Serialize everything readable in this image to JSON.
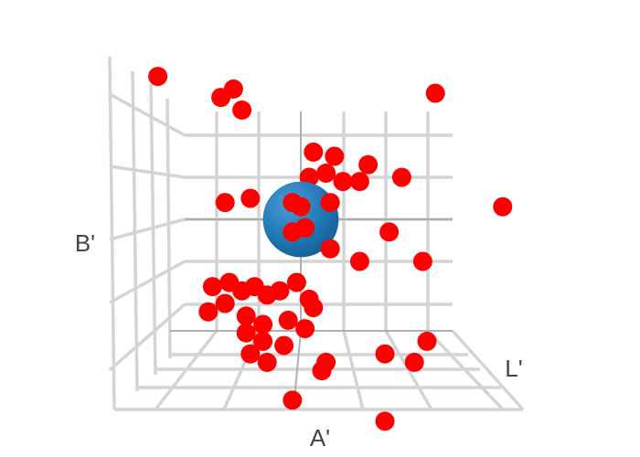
{
  "chart_data": {
    "type": "scatter3d",
    "axes": {
      "x": {
        "label": "A'",
        "ticks_shown": false
      },
      "y": {
        "label": "L'",
        "ticks_shown": false
      },
      "z": {
        "label": "B'",
        "ticks_shown": false
      }
    },
    "grid": true,
    "legend": "none",
    "colors": {
      "points": "#ff0000",
      "sphere": "#1f77b4",
      "grid": "#d4d4d4"
    },
    "sphere": {
      "x": 0,
      "y": 0,
      "z": 0,
      "r": 0.9
    },
    "series": [
      {
        "marker": "circle",
        "color": "#ff0000",
        "points": [
          [
            -3.4,
            0,
            3.4
          ],
          [
            -1.9,
            0,
            2.9
          ],
          [
            -1.6,
            0,
            3.1
          ],
          [
            -1.4,
            0,
            2.6
          ],
          [
            3.2,
            0,
            3.0
          ],
          [
            0.3,
            0,
            1.6
          ],
          [
            0.8,
            0,
            1.5
          ],
          [
            1.6,
            0,
            1.3
          ],
          [
            1.4,
            0,
            0.9
          ],
          [
            0.2,
            0,
            1.0
          ],
          [
            0.6,
            0,
            1.1
          ],
          [
            1.0,
            0,
            0.9
          ],
          [
            2.4,
            0,
            1.0
          ],
          [
            0.7,
            0,
            0.4
          ],
          [
            -1.8,
            0,
            0.4
          ],
          [
            -1.2,
            0,
            0.5
          ],
          [
            -0.2,
            0,
            0.4
          ],
          [
            0.0,
            0,
            0.3
          ],
          [
            -0.4,
            0,
            -0.1
          ],
          [
            -0.2,
            0,
            -0.3
          ],
          [
            0.1,
            0,
            -0.2
          ],
          [
            2.1,
            0,
            -0.3
          ],
          [
            4.8,
            0,
            0.3
          ],
          [
            0.7,
            0,
            -0.7
          ],
          [
            1.4,
            0,
            -1.0
          ],
          [
            2.9,
            0,
            -1.0
          ],
          [
            -2.1,
            0,
            -1.6
          ],
          [
            -1.7,
            0,
            -1.5
          ],
          [
            -1.4,
            0,
            -1.7
          ],
          [
            -1.1,
            0,
            -1.6
          ],
          [
            -0.8,
            0,
            -1.8
          ],
          [
            -0.5,
            0,
            -1.7
          ],
          [
            -0.1,
            0,
            -1.5
          ],
          [
            0.2,
            0,
            -1.9
          ],
          [
            -2.2,
            0,
            -2.2
          ],
          [
            -1.8,
            0,
            -2.0
          ],
          [
            -1.3,
            0,
            -2.3
          ],
          [
            -0.9,
            0,
            -2.5
          ],
          [
            -0.3,
            0,
            -2.4
          ],
          [
            0.3,
            0,
            -2.1
          ],
          [
            0.1,
            0,
            -2.6
          ],
          [
            -1.3,
            0,
            -2.7
          ],
          [
            -0.9,
            0,
            -2.9
          ],
          [
            -0.4,
            0,
            -3.0
          ],
          [
            -1.2,
            0,
            -3.2
          ],
          [
            -0.8,
            0,
            -3.4
          ],
          [
            0.6,
            0,
            -3.4
          ],
          [
            0.5,
            0,
            -3.6
          ],
          [
            2.0,
            0,
            -3.2
          ],
          [
            2.7,
            0,
            -3.4
          ],
          [
            3.0,
            0,
            -2.9
          ],
          [
            -0.2,
            0,
            -4.3
          ],
          [
            2.0,
            0,
            -4.8
          ]
        ]
      }
    ]
  }
}
